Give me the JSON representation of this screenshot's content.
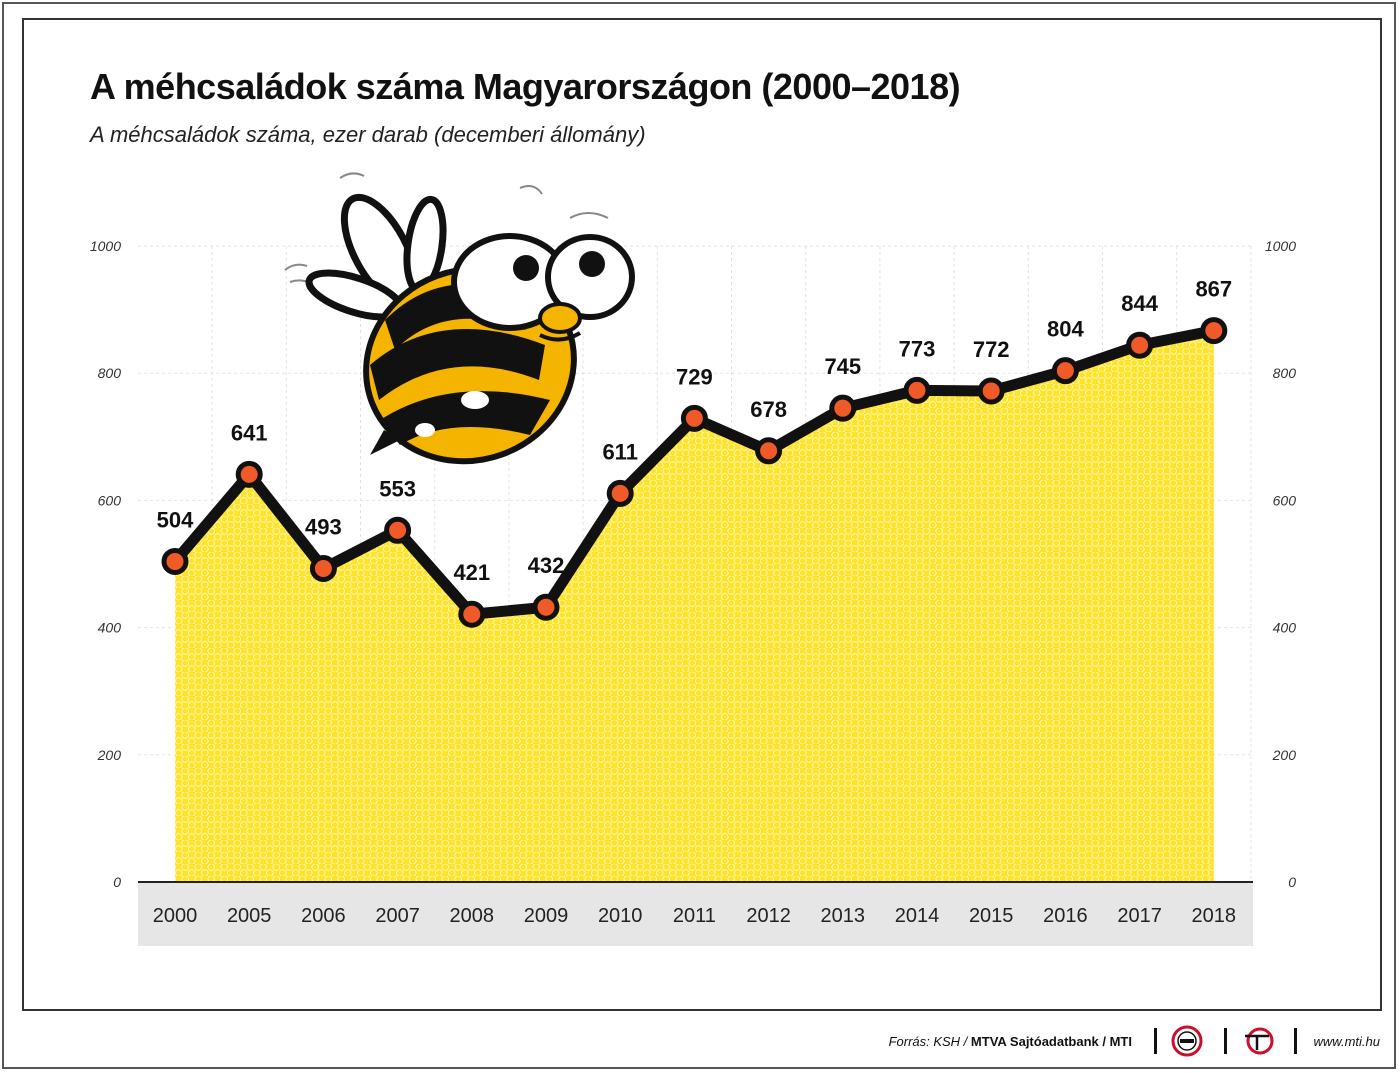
{
  "title": "A méhcsaládok száma Magyarországon (2000–2018)",
  "subtitle": "A méhcsaládok száma, ezer darab (decemberi állomány)",
  "chart_data": {
    "type": "area",
    "categories": [
      "2000",
      "2005",
      "2006",
      "2007",
      "2008",
      "2009",
      "2010",
      "2011",
      "2012",
      "2013",
      "2014",
      "2015",
      "2016",
      "2017",
      "2018"
    ],
    "values": [
      504,
      641,
      493,
      553,
      421,
      432,
      611,
      729,
      678,
      745,
      773,
      772,
      804,
      844,
      867
    ],
    "ylim": [
      0,
      1000
    ],
    "yticks": [
      0,
      200,
      400,
      600,
      800,
      1000
    ],
    "ytick_labels": [
      "0",
      "200",
      "400",
      "600",
      "800",
      "1000"
    ],
    "grid": true,
    "data_labels": true,
    "colors": {
      "fill": "#ffe22a",
      "line": "#111111",
      "marker": "#f05a28",
      "axis_band": "#e6e6e6",
      "grid": "#e2e2e2"
    }
  },
  "footer": {
    "source_prefix": "Forrás: KSH / ",
    "source_bold": "MTVA Sajtóadatbank / MTI",
    "url": "www.mti.hu",
    "logo1_icon": "mtva-round-logo",
    "logo2_icon": "mti-logo"
  }
}
